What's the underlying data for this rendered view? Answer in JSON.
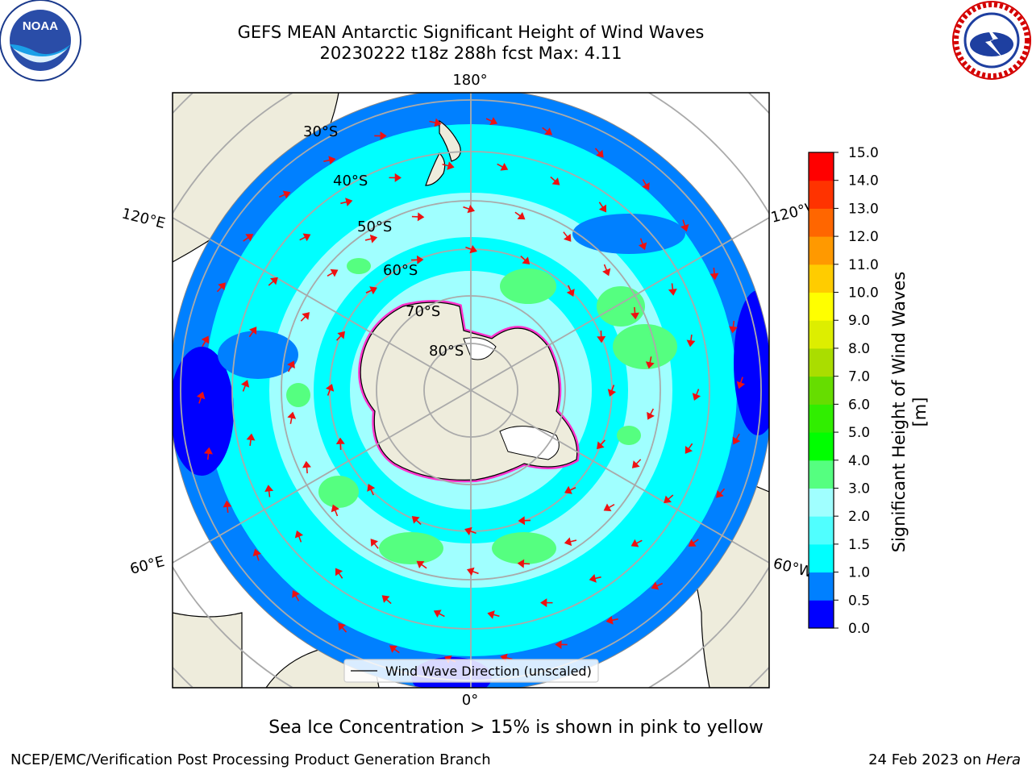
{
  "header": {
    "title_line1": "GEFS MEAN Antarctic Significant Height of Wind Waves",
    "title_line2": "20230222 t18z 288h fcst   Max: 4.11"
  },
  "logos": {
    "left": "noaa-logo",
    "right": "national-weather-service-logo"
  },
  "map": {
    "projection": "south-polar-stereographic",
    "longitude_labels": {
      "top": "180°",
      "bottom": "0°",
      "left_upper": "120°E",
      "left_lower": "60°E",
      "right_upper": "120°W",
      "right_lower": "60°W"
    },
    "latitude_labels": [
      "30°S",
      "40°S",
      "50°S",
      "60°S",
      "70°S",
      "80°S"
    ],
    "legend_label": "Wind Wave Direction (unscaled)",
    "colors": {
      "land": "#eeecdc",
      "ocean_low": "#0000ff",
      "ocean_mid": "#0080ff",
      "ocean_1": "#00ffff",
      "ocean_2": "#a0ffff",
      "ocean_3": "#55ff80",
      "sea_ice": "#ff33cc",
      "arrows": "#ee1111"
    }
  },
  "colorbar": {
    "label": "Significant Height of Wind Waves [m]",
    "ticks": [
      "0.0",
      "0.5",
      "1.0",
      "1.5",
      "2.0",
      "3.0",
      "4.0",
      "5.0",
      "6.0",
      "7.0",
      "8.0",
      "9.0",
      "10.0",
      "11.0",
      "12.0",
      "13.0",
      "14.0",
      "15.0"
    ],
    "colors": [
      "#0000ff",
      "#0080ff",
      "#00ffff",
      "#50ffff",
      "#a0ffff",
      "#55ff80",
      "#00ff00",
      "#30ee00",
      "#66dd00",
      "#aadd00",
      "#ddee00",
      "#ffff00",
      "#ffcc00",
      "#ff9900",
      "#ff6600",
      "#ff3300",
      "#ff0000"
    ]
  },
  "caption": "Sea Ice Concentration > 15% is shown in pink to yellow",
  "footer": {
    "left": "NCEP/EMC/Verification Post Processing Product Generation Branch",
    "right_prefix": "24 Feb 2023 on ",
    "right_machine": "Hera"
  }
}
